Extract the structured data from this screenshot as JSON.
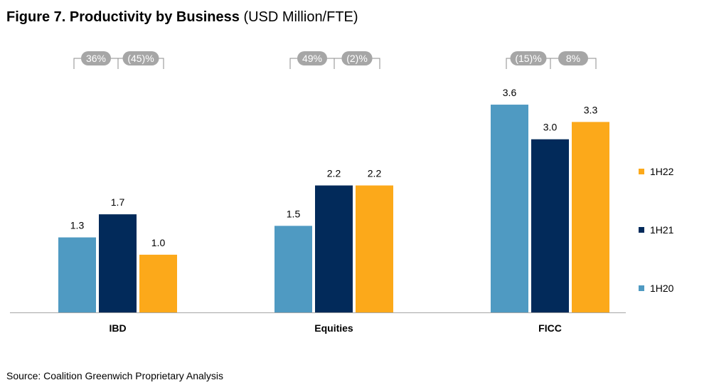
{
  "title": {
    "main": "Figure 7. Productivity by Business",
    "units": "(USD Million/FTE)"
  },
  "source": "Source: Coalition Greenwich Proprietary Analysis",
  "colors": {
    "1H20": "#4f9ac2",
    "1H21": "#022a5a",
    "1H22": "#fca91a",
    "badge": "#a6a6a6",
    "badge_text": "#ffffff",
    "axis": "#a6a6a6"
  },
  "chart_data": {
    "type": "bar",
    "categories": [
      "IBD",
      "Equities",
      "FICC"
    ],
    "series": [
      {
        "name": "1H20",
        "values": [
          1.3,
          1.5,
          3.6
        ],
        "labels": [
          "1.3",
          "1.5",
          "3.6"
        ]
      },
      {
        "name": "1H21",
        "values": [
          1.7,
          2.2,
          3.0
        ],
        "labels": [
          "1.7",
          "2.2",
          "3.0"
        ]
      },
      {
        "name": "1H22",
        "values": [
          1.0,
          2.2,
          3.3
        ],
        "labels": [
          "1.0",
          "2.2",
          "3.3"
        ]
      }
    ],
    "change_badges": [
      [
        "36%",
        "(45)%"
      ],
      [
        "49%",
        "(2)%"
      ],
      [
        "(15)%",
        "8%"
      ]
    ],
    "legend_order": [
      "1H22",
      "1H21",
      "1H20"
    ],
    "legend_position": "right",
    "ylim": [
      0,
      4.0
    ],
    "grid": false
  }
}
